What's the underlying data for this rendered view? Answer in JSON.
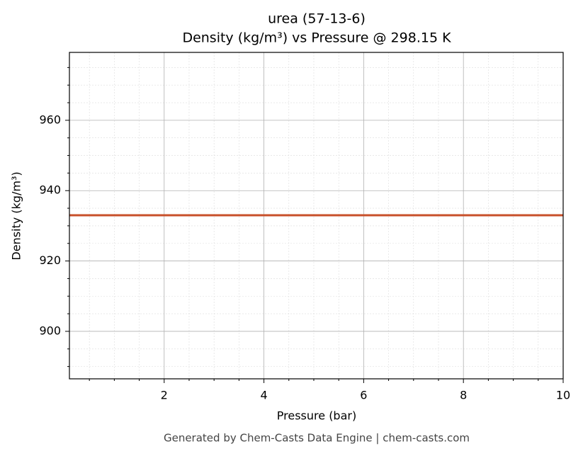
{
  "chart_data": {
    "type": "line",
    "title": "urea (57-13-6)",
    "subtitle": "Density (kg/m³) vs Pressure @ 298.15 K",
    "xlabel": "Pressure (bar)",
    "ylabel": "Density (kg/m³)",
    "footer": "Generated by Chem-Casts Data Engine | chem-casts.com",
    "x": [
      0.1,
      10
    ],
    "series": [
      {
        "color": "#c8502a",
        "values": [
          933,
          933
        ]
      }
    ],
    "xlim": [
      0.1,
      10
    ],
    "xticks": [
      2,
      4,
      6,
      8,
      10
    ],
    "xminorticks": [
      0.5,
      1,
      1.5,
      2.5,
      3,
      3.5,
      4.5,
      5,
      5.5,
      6.5,
      7,
      7.5,
      8.5,
      9,
      9.5
    ],
    "ylim": [
      886.5,
      979.3
    ],
    "yticks": [
      900,
      920,
      940,
      960
    ],
    "yminorticks": [
      890,
      895,
      905,
      910,
      915,
      925,
      930,
      935,
      945,
      950,
      955,
      965,
      970,
      975
    ],
    "grid": true
  }
}
